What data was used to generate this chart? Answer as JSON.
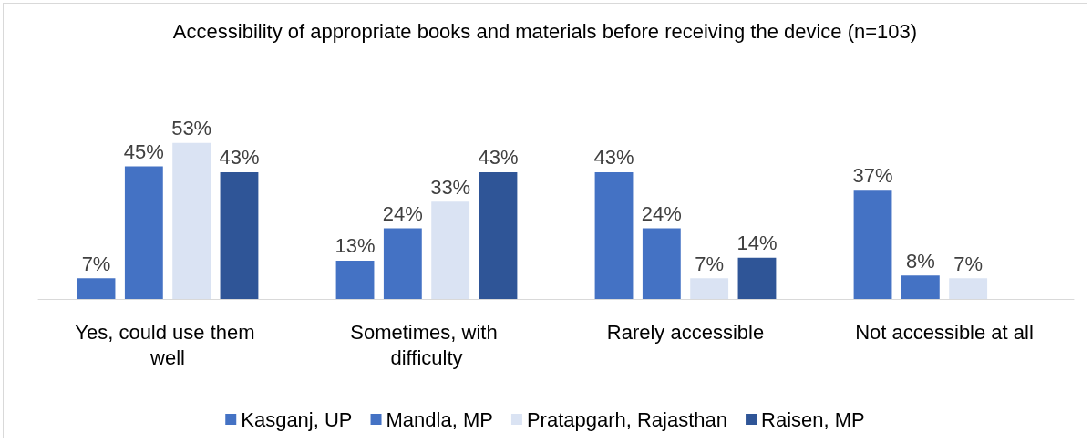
{
  "chart_data": {
    "type": "bar",
    "title": "Accessibility of appropriate books and materials before receiving the device (n=103)",
    "categories": [
      "Yes, could use them well",
      "Sometimes, with difficulty",
      "Rarely accessible",
      "Not accessible at all"
    ],
    "series": [
      {
        "name": "Kasganj, UP",
        "color": "#4472c4",
        "values": [
          7,
          13,
          43,
          37
        ],
        "value_labels": [
          "7%",
          "13%",
          "43%",
          "37%"
        ]
      },
      {
        "name": "Mandla, MP",
        "color": "#4472c4",
        "values": [
          45,
          24,
          24,
          8
        ],
        "value_labels": [
          "45%",
          "24%",
          "24%",
          "8%"
        ]
      },
      {
        "name": "Pratapgarh, Rajasthan",
        "color": "#dae3f3",
        "values": [
          53,
          33,
          7,
          7
        ],
        "value_labels": [
          "53%",
          "33%",
          "7%",
          "7%"
        ]
      },
      {
        "name": "Raisen, MP",
        "color": "#2f5597",
        "values": [
          43,
          43,
          14,
          null
        ],
        "value_labels": [
          "43%",
          "43%",
          "14%",
          null
        ]
      }
    ],
    "legend": "bottom"
  }
}
